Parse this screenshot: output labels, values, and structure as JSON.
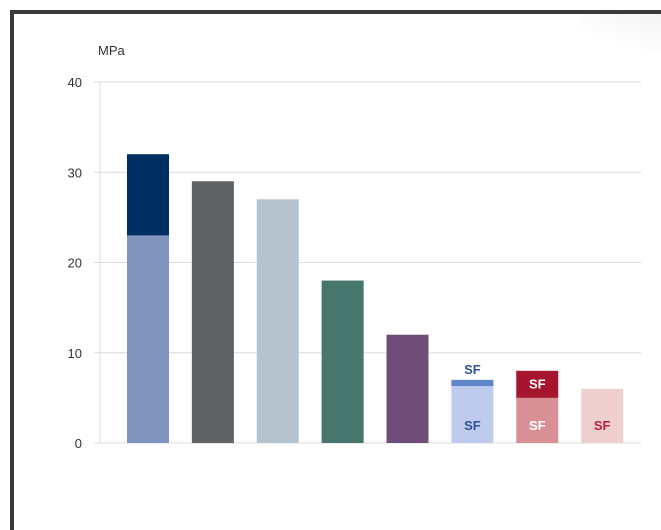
{
  "chart_data": {
    "type": "bar",
    "ylabel": "MPa",
    "ylim": [
      0,
      40
    ],
    "yticks": [
      0,
      10,
      20,
      30,
      40
    ],
    "grid": true,
    "bars": [
      {
        "segments": [
          {
            "value": 23,
            "color": "#7f95bd"
          },
          {
            "value": 9,
            "color": "#002d62"
          }
        ],
        "labels": []
      },
      {
        "segments": [
          {
            "value": 29,
            "color": "#5f6265"
          }
        ],
        "labels": []
      },
      {
        "segments": [
          {
            "value": 27,
            "color": "#b4c3cd"
          }
        ],
        "labels": []
      },
      {
        "segments": [
          {
            "value": 18,
            "color": "#46766c"
          }
        ],
        "labels": []
      },
      {
        "segments": [
          {
            "value": 12,
            "color": "#6e4e78"
          }
        ],
        "labels": []
      },
      {
        "segments": [
          {
            "value": 6.3,
            "color": "#bfcbec"
          },
          {
            "value": 0.7,
            "color": "#5f86c9"
          }
        ],
        "labels": [
          {
            "text": "SF",
            "at": 2,
            "color": "#2d5599"
          },
          {
            "text": "SF",
            "at": 8.2,
            "color": "#2d5599"
          }
        ]
      },
      {
        "segments": [
          {
            "value": 5,
            "color": "#d89096"
          },
          {
            "value": 3,
            "color": "#a5152e"
          }
        ],
        "labels": [
          {
            "text": "SF",
            "at": 2,
            "color": "#ffffff"
          },
          {
            "text": "SF",
            "at": 6.6,
            "color": "#ffffff"
          }
        ]
      },
      {
        "segments": [
          {
            "value": 6,
            "color": "#f0cfcf"
          }
        ],
        "labels": [
          {
            "text": "SF",
            "at": 2,
            "color": "#b51f3a"
          }
        ]
      }
    ]
  }
}
